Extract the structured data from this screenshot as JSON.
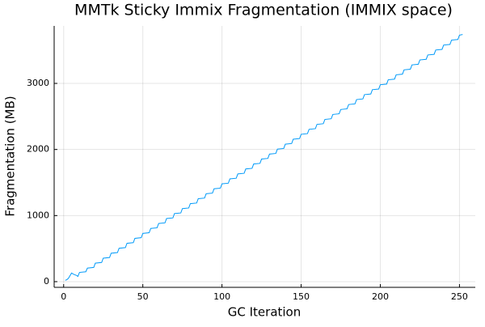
{
  "chart_data": {
    "type": "line",
    "title": "MMTk Sticky Immix Fragmentation (IMMIX space)",
    "xlabel": "GC Iteration",
    "ylabel": "Fragmentation (MB)",
    "x": [
      1,
      2,
      3,
      4,
      5,
      6,
      7,
      8,
      9,
      10,
      14,
      15,
      19,
      20,
      24,
      25,
      29,
      30,
      34,
      35,
      39,
      40,
      44,
      45,
      49,
      50,
      54,
      55,
      59,
      60,
      64,
      65,
      69,
      70,
      74,
      75,
      79,
      80,
      84,
      85,
      89,
      90,
      94,
      95,
      99,
      100,
      104,
      105,
      109,
      110,
      114,
      115,
      119,
      120,
      124,
      125,
      129,
      130,
      134,
      135,
      139,
      140,
      144,
      145,
      149,
      150,
      154,
      155,
      159,
      160,
      164,
      165,
      169,
      170,
      174,
      175,
      179,
      180,
      184,
      185,
      189,
      190,
      194,
      195,
      199,
      200,
      204,
      205,
      209,
      210,
      214,
      215,
      219,
      220,
      224,
      225,
      229,
      230,
      234,
      235,
      239,
      240,
      244,
      245,
      249,
      250,
      252
    ],
    "series": [
      {
        "name": "Fragmentation",
        "color": "#009af9",
        "values": [
          20,
          30,
          50,
          90,
          130,
          115,
          105,
          95,
          80,
          140,
          150,
          205,
          215,
          280,
          290,
          355,
          365,
          430,
          440,
          505,
          515,
          580,
          590,
          655,
          665,
          730,
          740,
          805,
          815,
          880,
          890,
          955,
          965,
          1030,
          1040,
          1105,
          1115,
          1180,
          1190,
          1255,
          1265,
          1330,
          1340,
          1405,
          1415,
          1480,
          1490,
          1555,
          1565,
          1630,
          1640,
          1705,
          1715,
          1780,
          1790,
          1855,
          1865,
          1930,
          1940,
          2005,
          2015,
          2080,
          2090,
          2155,
          2165,
          2230,
          2240,
          2305,
          2315,
          2380,
          2390,
          2455,
          2465,
          2530,
          2540,
          2605,
          2615,
          2680,
          2690,
          2755,
          2765,
          2830,
          2840,
          2905,
          2915,
          2980,
          2990,
          3055,
          3065,
          3130,
          3140,
          3205,
          3215,
          3280,
          3290,
          3355,
          3365,
          3430,
          3440,
          3505,
          3515,
          3580,
          3590,
          3655,
          3665,
          3730,
          3740
        ]
      }
    ],
    "xlim": [
      -6,
      260
    ],
    "xticks": [
      0,
      50,
      100,
      150,
      200,
      250
    ],
    "ylim": [
      -86,
      3870
    ],
    "yticks": [
      0,
      1000,
      2000,
      3000
    ],
    "grid": true
  }
}
